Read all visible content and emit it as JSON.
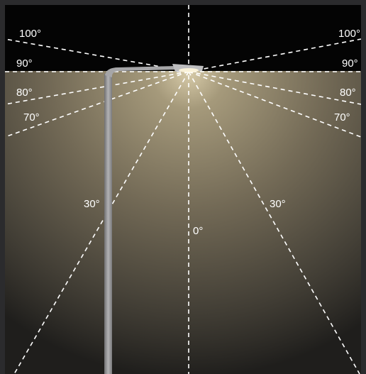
{
  "diagram": {
    "colors": {
      "background_top": "#030303",
      "light_cone": "#8a7d62",
      "light_glow": "#e9dcb8",
      "lines": "#ffffff",
      "pole": "#9a9a9c",
      "frame": "#2b2b2d"
    },
    "labels": {
      "left_100": "100°",
      "left_90": "90°",
      "left_80": "80°",
      "left_70": "70°",
      "left_30": "30°",
      "right_100": "100°",
      "right_90": "90°",
      "right_80": "80°",
      "right_70": "70°",
      "right_30": "30°",
      "center_0": "0°"
    }
  }
}
